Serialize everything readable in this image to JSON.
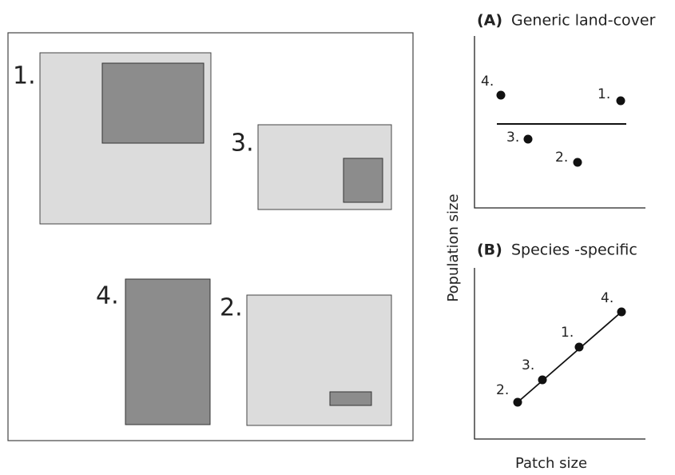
{
  "patches": [
    {
      "label": "1."
    },
    {
      "label": "3."
    },
    {
      "label": "4."
    },
    {
      "label": "2."
    }
  ],
  "panels": [
    {
      "letter": "(A)",
      "title": "Generic land-cover",
      "points": [
        {
          "label": "4."
        },
        {
          "label": "1."
        },
        {
          "label": "3."
        },
        {
          "label": "2."
        }
      ]
    },
    {
      "letter": "(B)",
      "title": "Species -specific",
      "points": [
        {
          "label": "2."
        },
        {
          "label": "3."
        },
        {
          "label": "1."
        },
        {
          "label": "4."
        }
      ]
    }
  ],
  "y_axis_label": "Population size",
  "x_axis_label": "Patch size"
}
